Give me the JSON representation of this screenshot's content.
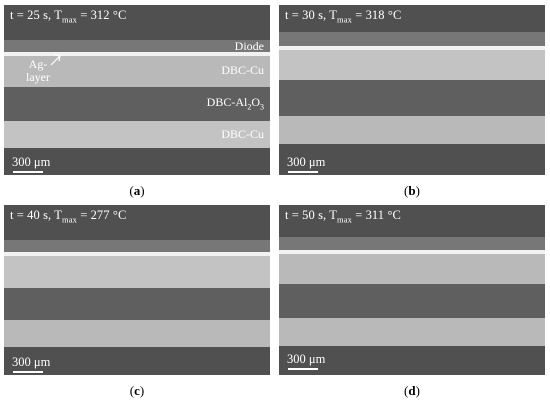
{
  "panels": {
    "a": {
      "t": "t = 25 s, T",
      "t_sub": "max",
      "t_rest": " = 312 °C",
      "scale": "300 μm",
      "caption": "a",
      "labels": {
        "diode": "Diode",
        "ag_line1": "Ag-",
        "ag_line2": "layer",
        "cu_top": "DBC-Cu",
        "al_prefix": "DBC-Al",
        "al_sub1": "2",
        "al_mid": "O",
        "al_sub2": "3",
        "cu_bottom": "DBC-Cu"
      }
    },
    "b": {
      "t": "t = 30 s, T",
      "t_sub": "max",
      "t_rest": " = 318 °C",
      "scale": "300 μm",
      "caption": "b"
    },
    "c": {
      "t": "t = 40 s, T",
      "t_sub": "max",
      "t_rest": " = 277 °C",
      "scale": "300 μm",
      "caption": "c"
    },
    "d": {
      "t": "t = 50 s, T",
      "t_sub": "max",
      "t_rest": " = 311 °C",
      "scale": "300 μm",
      "caption": "d"
    }
  }
}
